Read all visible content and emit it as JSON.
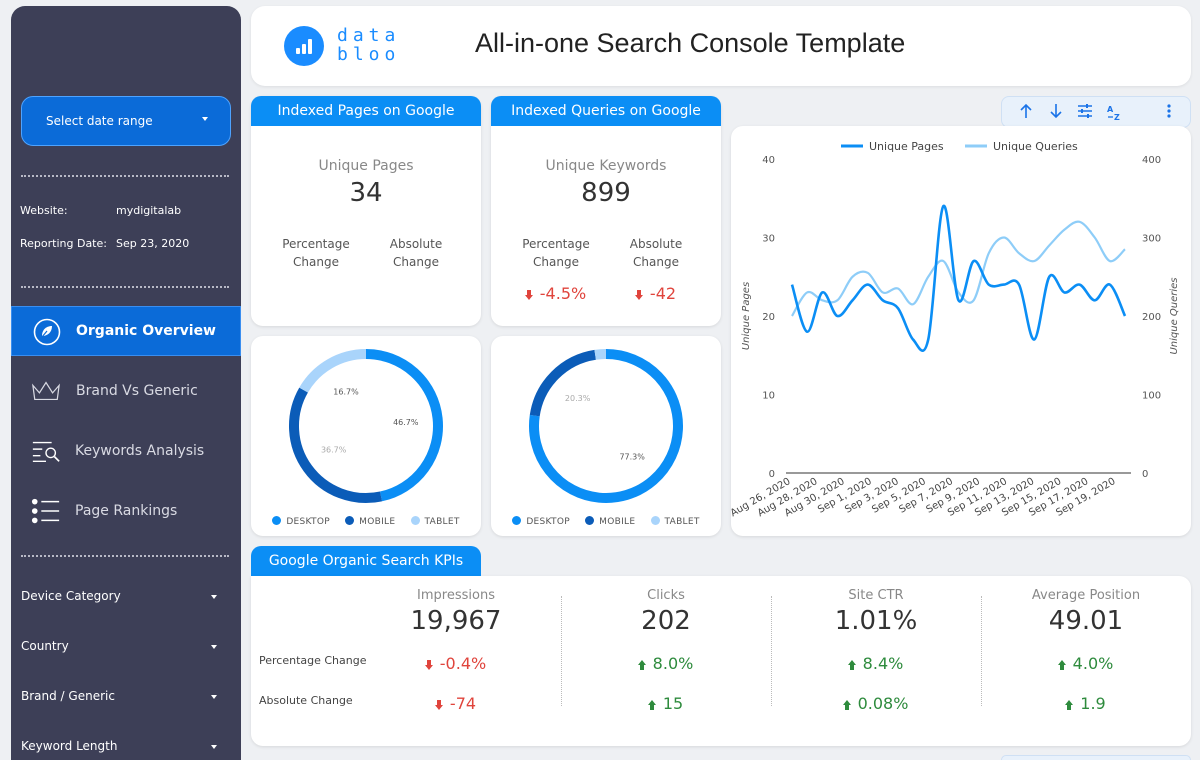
{
  "sidebar": {
    "date_range_label": "Select date range",
    "website_label": "Website:",
    "website_value": "mydigitalab",
    "reporting_label": "Reporting Date:",
    "reporting_value": "Sep 23, 2020",
    "nav": [
      {
        "label": "Organic Overview",
        "icon": "leaf-icon",
        "active": true
      },
      {
        "label": "Brand Vs Generic",
        "icon": "crown-icon",
        "active": false
      },
      {
        "label": "Keywords Analysis",
        "icon": "search-list-icon",
        "active": false
      },
      {
        "label": "Page Rankings",
        "icon": "bullet-list-icon",
        "active": false
      }
    ],
    "filters": [
      "Device Category",
      "Country",
      "Brand / Generic",
      "Keyword Length"
    ]
  },
  "header": {
    "logo_line1": "data",
    "logo_line2": "bloo",
    "title": "All-in-one Search Console Template"
  },
  "indexed_pages": {
    "tab": "Indexed Pages on Google",
    "metric_label": "Unique Pages",
    "value": "34",
    "pct_label_1": "Percentage",
    "pct_label_2": "Change",
    "abs_label_1": "Absolute",
    "abs_label_2": "Change",
    "pct_value": "",
    "abs_value": ""
  },
  "indexed_queries": {
    "tab": "Indexed Queries on Google",
    "metric_label": "Unique Keywords",
    "value": "899",
    "pct_label_1": "Percentage",
    "pct_label_2": "Change",
    "abs_label_1": "Absolute",
    "abs_label_2": "Change",
    "pct_value": "-4.5%",
    "abs_value": "-42"
  },
  "colors": {
    "desktop": "#0b8ef5",
    "mobile": "#0b5cb8",
    "tablet": "#a9d4fb",
    "negative": "#e0443c",
    "positive": "#2e8b3d"
  },
  "donut_legend": {
    "desktop": "DESKTOP",
    "mobile": "MOBILE",
    "tablet": "TABLET"
  },
  "donut_pages": {
    "desktop": "46.7%",
    "mobile": "36.7%",
    "tablet": "16.7%"
  },
  "donut_queries": {
    "desktop": "77.3%",
    "mobile": "20.3%",
    "tablet": ""
  },
  "toolbar_icons": [
    "arrow-up-icon",
    "arrow-down-icon",
    "filter-sliders-icon",
    "sort-az-icon",
    "more-vert-icon"
  ],
  "kpis": {
    "tab": "Google Organic Search KPIs",
    "row_label_pct": "Percentage Change",
    "row_label_abs": "Absolute Change",
    "items": [
      {
        "label": "Impressions",
        "value": "19,967",
        "pct": "-0.4%",
        "abs": "-74",
        "dir": "down"
      },
      {
        "label": "Clicks",
        "value": "202",
        "pct": "8.0%",
        "abs": "15",
        "dir": "up"
      },
      {
        "label": "Site CTR",
        "value": "1.01%",
        "pct": "8.4%",
        "abs": "0.08%",
        "dir": "up"
      },
      {
        "label": "Average Position",
        "value": "49.01",
        "pct": "4.0%",
        "abs": "1.9",
        "dir": "up"
      }
    ]
  },
  "chart_data": [
    {
      "type": "pie",
      "categories": [
        "DESKTOP",
        "MOBILE",
        "TABLET"
      ],
      "values": [
        46.7,
        36.7,
        16.7
      ],
      "data_labels": [
        "46.7%",
        "36.7%",
        "16.7%"
      ]
    },
    {
      "type": "pie",
      "categories": [
        "DESKTOP",
        "MOBILE",
        "TABLET"
      ],
      "values": [
        77.3,
        20.3,
        2.4
      ],
      "data_labels": [
        "77.3%",
        "20.3%",
        ""
      ]
    },
    {
      "type": "line",
      "legend_position": "top",
      "x_labels": [
        "Aug 26, 2020",
        "Aug 28, 2020",
        "Aug 30, 2020",
        "Sep 1, 2020",
        "Sep 3, 2020",
        "Sep 5, 2020",
        "Sep 7, 2020",
        "Sep 9, 2020",
        "Sep 11, 2020",
        "Sep 13, 2020",
        "Sep 15, 2020",
        "Sep 17, 2020",
        "Sep 19, 2020"
      ],
      "ylabel": "Unique Pages",
      "y2label": "Unique Queries",
      "ylim": [
        0,
        40
      ],
      "y2lim": [
        0,
        400
      ],
      "yticks": [
        "0",
        "10",
        "20",
        "30",
        "40"
      ],
      "y2ticks": [
        "0",
        "100",
        "200",
        "300",
        "400"
      ],
      "series": [
        {
          "name": "Unique Pages",
          "axis": "left",
          "values": [
            24,
            18,
            23,
            20,
            22,
            24,
            22,
            21,
            17,
            17,
            34,
            22,
            27,
            24,
            24,
            24,
            17,
            25,
            23,
            24,
            22,
            24,
            20
          ]
        },
        {
          "name": "Unique Queries",
          "axis": "right",
          "values": [
            200,
            230,
            220,
            220,
            250,
            255,
            230,
            235,
            215,
            250,
            270,
            230,
            220,
            280,
            300,
            280,
            270,
            290,
            310,
            320,
            300,
            270,
            285
          ]
        }
      ]
    }
  ]
}
